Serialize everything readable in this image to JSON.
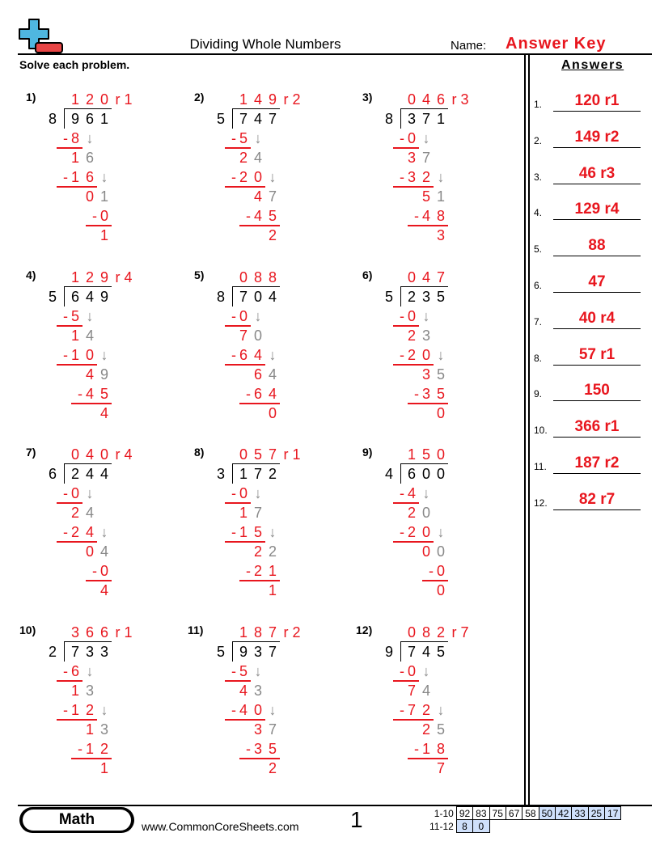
{
  "header": {
    "title": "Dividing Whole Numbers",
    "name_label": "Name:",
    "answer_key": "Answer Key",
    "instructions": "Solve each problem.",
    "answers_heading": "Answers"
  },
  "problems": [
    {
      "label": "1)",
      "divisor": "8",
      "dividend": "961",
      "quotient": "120",
      "remainder": "r1",
      "steps": [
        {
          "product": "8",
          "rem": "1",
          "bring": "6"
        },
        {
          "product": "16",
          "rem": "0",
          "bring": "1"
        },
        {
          "product": "0",
          "rem": "1"
        }
      ]
    },
    {
      "label": "2)",
      "divisor": "5",
      "dividend": "747",
      "quotient": "149",
      "remainder": "r2",
      "steps": [
        {
          "product": "5",
          "rem": "2",
          "bring": "4"
        },
        {
          "product": "20",
          "rem": "4",
          "bring": "7"
        },
        {
          "product": "45",
          "rem": "2"
        }
      ]
    },
    {
      "label": "3)",
      "divisor": "8",
      "dividend": "371",
      "quotient": "046",
      "remainder": "r3",
      "steps": [
        {
          "product": "0",
          "rem": "3",
          "bring": "7"
        },
        {
          "product": "32",
          "rem": "5",
          "bring": "1"
        },
        {
          "product": "48",
          "rem": "3"
        }
      ]
    },
    {
      "label": "4)",
      "divisor": "5",
      "dividend": "649",
      "quotient": "129",
      "remainder": "r4",
      "steps": [
        {
          "product": "5",
          "rem": "1",
          "bring": "4"
        },
        {
          "product": "10",
          "rem": "4",
          "bring": "9"
        },
        {
          "product": "45",
          "rem": "4"
        }
      ]
    },
    {
      "label": "5)",
      "divisor": "8",
      "dividend": "704",
      "quotient": "088",
      "remainder": "",
      "steps": [
        {
          "product": "0",
          "rem": "7",
          "bring": "0"
        },
        {
          "product": "64",
          "rem": "6",
          "bring": "4"
        },
        {
          "product": "64",
          "rem": "0"
        }
      ]
    },
    {
      "label": "6)",
      "divisor": "5",
      "dividend": "235",
      "quotient": "047",
      "remainder": "",
      "steps": [
        {
          "product": "0",
          "rem": "2",
          "bring": "3"
        },
        {
          "product": "20",
          "rem": "3",
          "bring": "5"
        },
        {
          "product": "35",
          "rem": "0"
        }
      ]
    },
    {
      "label": "7)",
      "divisor": "6",
      "dividend": "244",
      "quotient": "040",
      "remainder": "r4",
      "steps": [
        {
          "product": "0",
          "rem": "2",
          "bring": "4"
        },
        {
          "product": "24",
          "rem": "0",
          "bring": "4"
        },
        {
          "product": "0",
          "rem": "4"
        }
      ]
    },
    {
      "label": "8)",
      "divisor": "3",
      "dividend": "172",
      "quotient": "057",
      "remainder": "r1",
      "steps": [
        {
          "product": "0",
          "rem": "1",
          "bring": "7"
        },
        {
          "product": "15",
          "rem": "2",
          "bring": "2"
        },
        {
          "product": "21",
          "rem": "1"
        }
      ]
    },
    {
      "label": "9)",
      "divisor": "4",
      "dividend": "600",
      "quotient": "150",
      "remainder": "",
      "steps": [
        {
          "product": "4",
          "rem": "2",
          "bring": "0"
        },
        {
          "product": "20",
          "rem": "0",
          "bring": "0"
        },
        {
          "product": "0",
          "rem": "0"
        }
      ]
    },
    {
      "label": "10)",
      "divisor": "2",
      "dividend": "733",
      "quotient": "366",
      "remainder": "r1",
      "steps": [
        {
          "product": "6",
          "rem": "1",
          "bring": "3"
        },
        {
          "product": "12",
          "rem": "1",
          "bring": "3"
        },
        {
          "product": "12",
          "rem": "1"
        }
      ]
    },
    {
      "label": "11)",
      "divisor": "5",
      "dividend": "937",
      "quotient": "187",
      "remainder": "r2",
      "steps": [
        {
          "product": "5",
          "rem": "4",
          "bring": "3"
        },
        {
          "product": "40",
          "rem": "3",
          "bring": "7"
        },
        {
          "product": "35",
          "rem": "2"
        }
      ]
    },
    {
      "label": "12)",
      "divisor": "9",
      "dividend": "745",
      "quotient": "082",
      "remainder": "r7",
      "steps": [
        {
          "product": "0",
          "rem": "7",
          "bring": "4"
        },
        {
          "product": "72",
          "rem": "2",
          "bring": "5"
        },
        {
          "product": "18",
          "rem": "7"
        }
      ]
    }
  ],
  "answers": [
    {
      "num": "1.",
      "value": "120 r1"
    },
    {
      "num": "2.",
      "value": "149 r2"
    },
    {
      "num": "3.",
      "value": "46 r3"
    },
    {
      "num": "4.",
      "value": "129 r4"
    },
    {
      "num": "5.",
      "value": "88"
    },
    {
      "num": "6.",
      "value": "47"
    },
    {
      "num": "7.",
      "value": "40 r4"
    },
    {
      "num": "8.",
      "value": "57 r1"
    },
    {
      "num": "9.",
      "value": "150"
    },
    {
      "num": "10.",
      "value": "366 r1"
    },
    {
      "num": "11.",
      "value": "187 r2"
    },
    {
      "num": "12.",
      "value": "82 r7"
    }
  ],
  "footer": {
    "subject": "Math",
    "site": "www.CommonCoreSheets.com",
    "page": "1",
    "score_rows": [
      {
        "label": "1-10",
        "values": [
          "92",
          "83",
          "75",
          "67",
          "58",
          "50",
          "42",
          "33",
          "25",
          "17"
        ]
      },
      {
        "label": "11-12",
        "values": [
          "8",
          "0"
        ]
      }
    ]
  },
  "colors": {
    "accent": "#e8161e",
    "logo_blue": "#4fb7e0",
    "score_highlight": "#cfe0fb",
    "work_gray": "#888888"
  },
  "icons": {
    "logo": "plus-minus-logo",
    "bring_down": "down-arrow"
  }
}
